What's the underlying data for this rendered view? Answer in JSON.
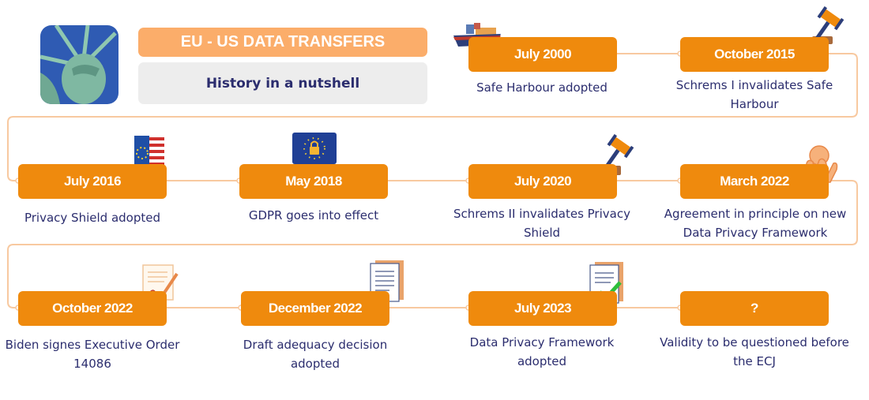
{
  "header": {
    "title": "EU - US DATA TRANSFERS",
    "subtitle": "History in a nutshell"
  },
  "colors": {
    "accent": "#EF8A0D",
    "header": "#FBAD6A",
    "connector": "#F8C9A0",
    "text": "#2B2D6E"
  },
  "events": [
    {
      "date": "July 2000",
      "description": "Safe Harbour adopted",
      "icon": "cargo-ship-icon"
    },
    {
      "date": "October 2015",
      "description": "Schrems I invalidates Safe Harbour",
      "icon": "gavel-icon"
    },
    {
      "date": "July 2016",
      "description": "Privacy Shield adopted",
      "icon": "eu-us-shield-icon"
    },
    {
      "date": "May 2018",
      "description": "GDPR goes into effect",
      "icon": "eu-flag-lock-icon"
    },
    {
      "date": "July 2020",
      "description": "Schrems II invalidates Privacy Shield",
      "icon": "gavel-icon"
    },
    {
      "date": "March 2022",
      "description": "Agreement in principle on new Data Privacy Framework",
      "icon": "handshake-icon"
    },
    {
      "date": "October 2022",
      "description": "Biden signes Executive Order 14086",
      "icon": "signed-document-icon"
    },
    {
      "date": "December 2022",
      "description": "Draft adequacy decision adopted",
      "icon": "document-icon"
    },
    {
      "date": "July 2023",
      "description": "Data Privacy Framework adopted",
      "icon": "approved-document-icon"
    },
    {
      "date": "?",
      "description": "Validity to be questioned before the ECJ",
      "icon": ""
    }
  ]
}
